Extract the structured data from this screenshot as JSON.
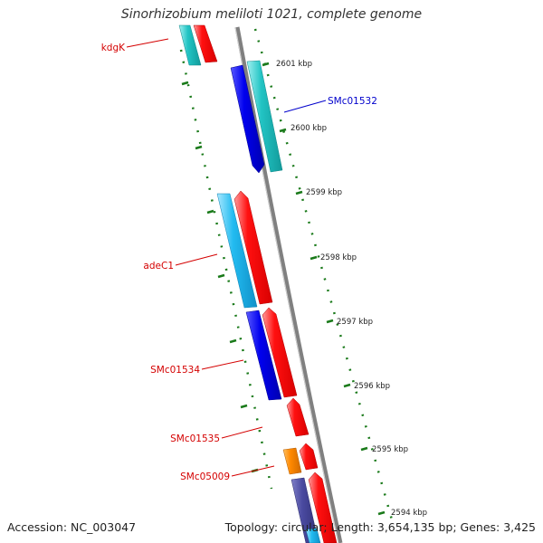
{
  "title": "Sinorhizobium meliloti 1021, complete genome",
  "footer": {
    "accession": "Accession: NC_003047",
    "summary": "Topology: circular; Length: 3,654,135 bp; Genes: 3,425"
  },
  "ticks": [
    {
      "label": "2601 kbp"
    },
    {
      "label": "2600 kbp"
    },
    {
      "label": "2599 kbp"
    },
    {
      "label": "2598 kbp"
    },
    {
      "label": "2597 kbp"
    },
    {
      "label": "2596 kbp"
    },
    {
      "label": "2595 kbp"
    },
    {
      "label": "2594 kbp"
    }
  ],
  "gene_labels": [
    {
      "text": "kdgK",
      "color": "#d40000"
    },
    {
      "text": "SMc01532",
      "color": "#0000cc"
    },
    {
      "text": "adeC1",
      "color": "#d40000"
    },
    {
      "text": "SMc01534",
      "color": "#d40000"
    },
    {
      "text": "SMc01535",
      "color": "#d40000"
    },
    {
      "text": "SMc05009",
      "color": "#d40000"
    }
  ],
  "colors": {
    "backbone": "#808080",
    "tick_marks": "#1a7a1a",
    "gene_red": "#ff0000",
    "gene_blue": "#0000ee",
    "gene_cyan": "#22c4c4",
    "gene_skyblue": "#22bbf0",
    "gene_orange": "#ff8800",
    "gene_slate": "#4a4aa0"
  }
}
